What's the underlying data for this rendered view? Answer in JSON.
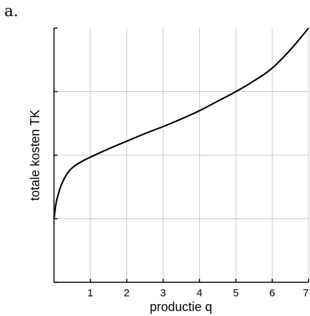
{
  "panel_label": "a.",
  "chart_data": {
    "type": "line",
    "xlabel": "productie q",
    "ylabel": "totale kosten TK",
    "x_tick_labels": [
      "1",
      "2",
      "3",
      "4",
      "5",
      "6",
      "7"
    ],
    "xlim": [
      0,
      7
    ],
    "ylim": [
      0,
      4
    ],
    "grid": true,
    "line_color": "#000000",
    "grid_color": "#c8c8c8",
    "series": [
      {
        "x": [
          0,
          0.05,
          0.1,
          0.2,
          0.35,
          0.5,
          0.7,
          1,
          1.5,
          2,
          2.5,
          3,
          3.5,
          4,
          4.5,
          5,
          5.5,
          6,
          6.5,
          7
        ],
        "y": [
          1,
          1.22,
          1.35,
          1.53,
          1.7,
          1.8,
          1.88,
          1.97,
          2.1,
          2.22,
          2.34,
          2.45,
          2.57,
          2.7,
          2.85,
          3,
          3.17,
          3.37,
          3.66,
          4
        ]
      }
    ]
  }
}
